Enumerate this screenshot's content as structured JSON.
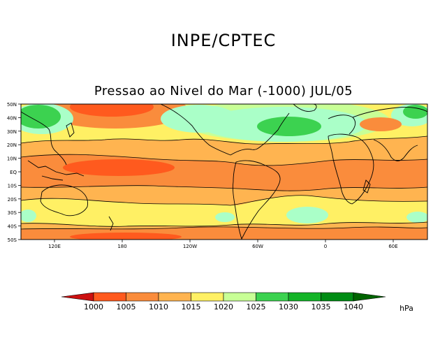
{
  "header": {
    "agency": "INPE/CPTEC",
    "title": "Pressao ao Nivel do Mar (-1000) JUL/05"
  },
  "map": {
    "lat_labels": [
      "50N",
      "40N",
      "30N",
      "20N",
      "10N",
      "EQ",
      "10S",
      "20S",
      "30S",
      "40S",
      "50S"
    ],
    "lon_labels": [
      "120E",
      "180",
      "120W",
      "60W",
      "0",
      "60E"
    ]
  },
  "legend": {
    "levels": [
      "1000",
      "1005",
      "1010",
      "1015",
      "1020",
      "1025",
      "1030",
      "1035",
      "1040"
    ],
    "unit": "hPa",
    "colors": [
      "#cc1010",
      "#ff5a1e",
      "#fa8c3c",
      "#ffb450",
      "#fff064",
      "#c8ff96",
      "#aaffc8",
      "#3cd250",
      "#14b428",
      "#008c14",
      "#006400"
    ]
  }
}
